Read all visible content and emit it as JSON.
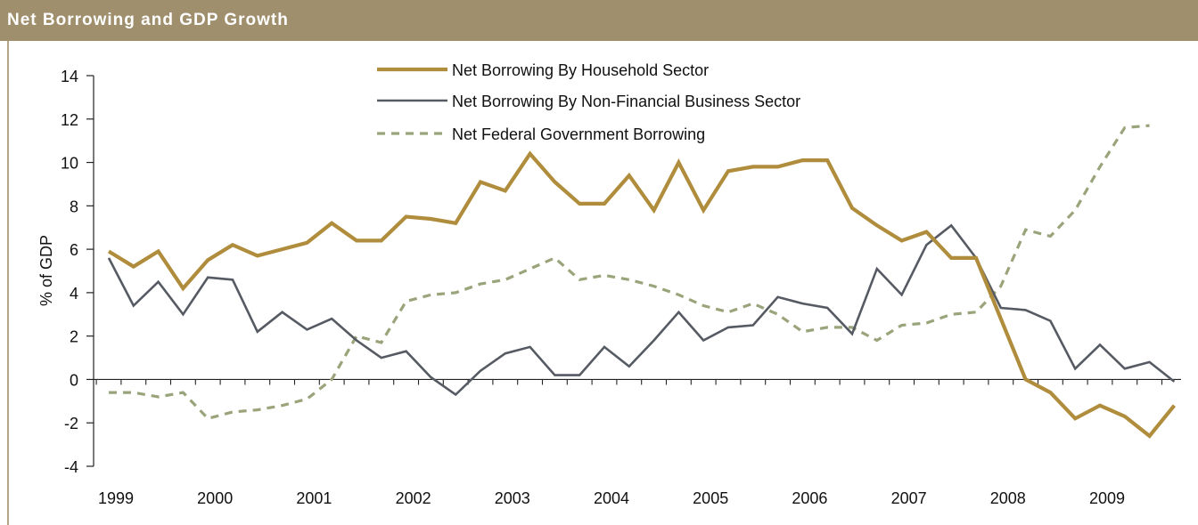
{
  "header": {
    "title": "Net Borrowing and GDP Growth"
  },
  "chart_data": {
    "type": "line",
    "title": "Net Borrowing and GDP Growth",
    "xlabel": "",
    "ylabel": "% of GDP",
    "ylim": [
      -4,
      14
    ],
    "yticks": [
      14,
      12,
      10,
      8,
      6,
      4,
      2,
      0,
      -2,
      -4
    ],
    "xlim": [
      1999.0,
      2009.875
    ],
    "xtick_labels": [
      "1999",
      "2000",
      "2001",
      "2002",
      "2003",
      "2004",
      "2005",
      "2006",
      "2007",
      "2008",
      "2009"
    ],
    "x": [
      1999.0,
      1999.25,
      1999.5,
      1999.75,
      2000.0,
      2000.25,
      2000.5,
      2000.75,
      2001.0,
      2001.25,
      2001.5,
      2001.75,
      2002.0,
      2002.25,
      2002.5,
      2002.75,
      2003.0,
      2003.25,
      2003.5,
      2003.75,
      2004.0,
      2004.25,
      2004.5,
      2004.75,
      2005.0,
      2005.25,
      2005.5,
      2005.75,
      2006.0,
      2006.25,
      2006.5,
      2006.75,
      2007.0,
      2007.25,
      2007.5,
      2007.75,
      2008.0,
      2008.25,
      2008.5,
      2008.75,
      2009.0,
      2009.25,
      2009.5,
      2009.75
    ],
    "legend_position": "top-center",
    "grid": false,
    "series": [
      {
        "name": "Net Borrowing By Household Sector",
        "color": "#b08d3c",
        "style": "solid-thick",
        "values": [
          5.9,
          5.2,
          5.9,
          4.2,
          5.5,
          6.2,
          5.7,
          6.0,
          6.3,
          7.2,
          6.4,
          6.4,
          7.5,
          7.4,
          7.2,
          9.1,
          8.7,
          10.4,
          9.1,
          8.1,
          8.1,
          9.4,
          7.8,
          10.0,
          7.8,
          9.6,
          9.8,
          9.8,
          10.1,
          10.1,
          7.9,
          7.1,
          6.4,
          6.8,
          5.6,
          5.6,
          2.8,
          0.0,
          -0.6,
          -1.8,
          -1.2,
          -1.7,
          -2.6,
          -1.2
        ]
      },
      {
        "name": "Net Borrowing By Non-Financial Business Sector",
        "color": "#555a63",
        "style": "solid",
        "values": [
          5.6,
          3.4,
          4.5,
          3.0,
          4.7,
          4.6,
          2.2,
          3.1,
          2.3,
          2.8,
          1.8,
          1.0,
          1.3,
          0.1,
          -0.7,
          0.4,
          1.2,
          1.5,
          0.2,
          0.2,
          1.5,
          0.6,
          1.8,
          3.1,
          1.8,
          2.4,
          2.5,
          3.8,
          3.5,
          3.3,
          2.1,
          5.1,
          3.9,
          6.2,
          7.1,
          5.6,
          3.3,
          3.2,
          2.7,
          0.5,
          1.6,
          0.5,
          0.8,
          -0.1
        ]
      },
      {
        "name": "Net Federal Government Borrowing",
        "color": "#9aa47a",
        "style": "dashed",
        "values": [
          -0.6,
          -0.6,
          -0.8,
          -0.6,
          -1.8,
          -1.5,
          -1.4,
          -1.2,
          -0.9,
          0.0,
          2.0,
          1.7,
          3.6,
          3.9,
          4.0,
          4.4,
          4.6,
          5.1,
          5.6,
          4.6,
          4.8,
          4.6,
          4.3,
          3.9,
          3.4,
          3.1,
          3.5,
          3.0,
          2.2,
          2.4,
          2.4,
          1.8,
          2.5,
          2.6,
          3.0,
          3.1,
          4.3,
          6.9,
          6.6,
          7.8,
          9.8,
          11.6,
          11.7,
          null
        ]
      }
    ]
  }
}
